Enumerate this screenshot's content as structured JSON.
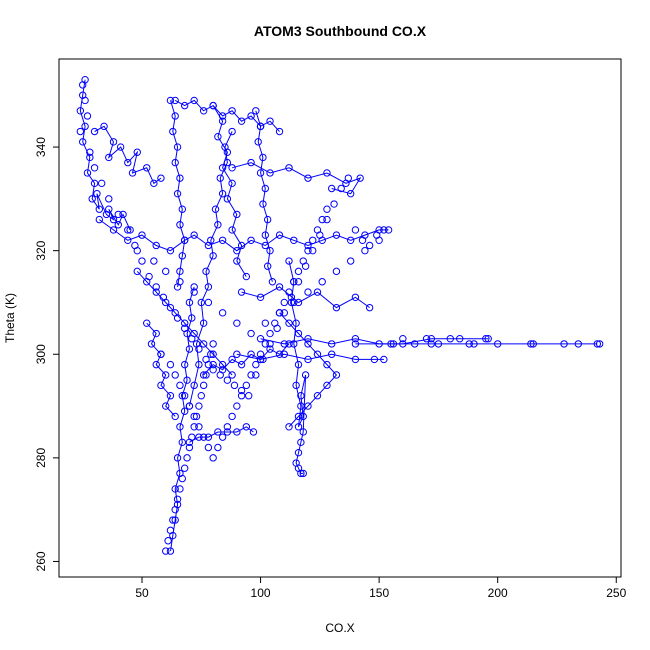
{
  "chart_data": {
    "type": "scatter",
    "title": "ATOM3 Southbound CO.X",
    "xlabel": "CO.X",
    "ylabel": "Theta (K)",
    "xlim": [
      15,
      252
    ],
    "ylim": [
      257,
      357
    ],
    "xticks": [
      50,
      100,
      150,
      200,
      250
    ],
    "yticks": [
      260,
      280,
      300,
      320,
      340
    ],
    "grid": false,
    "legend": "none",
    "series": [
      {
        "color": "#0000ff",
        "marker": "open-circle",
        "connected": true,
        "segments": [
          {
            "x": [
              26,
              25,
              24,
              26,
              25,
              28,
              27,
              30,
              29,
              32,
              31,
              35,
              38,
              36,
              40,
              42,
              45
            ],
            "y": [
              353,
              350,
              347,
              344,
              341,
              338,
              335,
              333,
              330,
              328,
              331,
              327,
              326,
              328,
              325,
              327,
              324
            ]
          },
          {
            "x": [
              30,
              34,
              38,
              36,
              41,
              44,
              48,
              46,
              52,
              55,
              58
            ],
            "y": [
              343,
              344,
              341,
              338,
              340,
              337,
              339,
              335,
              336,
              333,
              334
            ]
          },
          {
            "x": [
              32,
              38,
              44,
              50,
              56,
              62,
              68,
              72,
              78,
              84,
              90,
              96,
              102,
              108,
              114,
              120,
              126,
              132,
              138,
              144,
              150,
              154
            ],
            "y": [
              326,
              324,
              322,
              323,
              321,
              320,
              322,
              323,
              321,
              322,
              320,
              322,
              321,
              323,
              322,
              321,
              322,
              323,
              322,
              323,
              324,
              324
            ]
          },
          {
            "x": [
              62,
              63,
              64,
              65,
              64,
              66,
              65,
              67,
              66,
              68,
              67,
              69,
              68,
              70,
              69,
              71,
              70,
              72
            ],
            "y": [
              262,
              265,
              268,
              271,
              274,
              277,
              280,
              283,
              286,
              289,
              292,
              295,
              298,
              301,
              304,
              307,
              310,
              313
            ]
          },
          {
            "x": [
              70,
              72,
              74,
              73,
              76,
              75,
              78,
              77,
              80,
              79,
              82,
              81,
              84,
              83,
              86,
              85,
              88
            ],
            "y": [
              290,
              294,
              298,
              302,
              306,
              310,
              313,
              316,
              319,
              322,
              325,
              328,
              331,
              334,
              337,
              340,
              343
            ]
          },
          {
            "x": [
              62,
              64,
              63,
              65,
              64,
              66,
              65,
              67,
              66,
              68,
              67,
              66,
              65
            ],
            "y": [
              349,
              346,
              343,
              340,
              337,
              334,
              331,
              328,
              325,
              322,
              319,
              316,
              313
            ]
          },
          {
            "x": [
              64,
              68,
              72,
              76,
              80,
              84,
              88,
              92,
              96,
              100,
              104,
              108
            ],
            "y": [
              349,
              348,
              349,
              347,
              348,
              346,
              347,
              345,
              346,
              344,
              345,
              343
            ]
          },
          {
            "x": [
              80,
              84,
              82,
              86,
              84,
              88,
              86,
              90,
              88,
              92,
              90,
              94
            ],
            "y": [
              348,
              345,
              342,
              339,
              336,
              333,
              330,
              327,
              324,
              321,
              318,
              315
            ]
          },
          {
            "x": [
              98,
              100,
              99,
              101,
              100,
              102,
              101,
              103,
              102,
              104,
              103,
              105
            ],
            "y": [
              347,
              344,
              341,
              338,
              335,
              332,
              329,
              326,
              323,
              320,
              317,
              314
            ]
          },
          {
            "x": [
              112,
              114,
              113,
              115,
              114,
              116,
              115,
              117,
              116,
              118,
              117,
              119,
              118,
              117,
              116,
              115,
              116,
              117,
              118
            ],
            "y": [
              318,
              314,
              310,
              306,
              302,
              298,
              294,
              290,
              286,
              288,
              292,
              296,
              285,
              283,
              281,
              279,
              278,
              277,
              277
            ]
          },
          {
            "x": [
              88,
              96,
              104,
              112,
              120,
              128,
              136,
              142,
              138,
              130
            ],
            "y": [
              336,
              337,
              335,
              336,
              334,
              335,
              333,
              334,
              331,
              332
            ]
          },
          {
            "x": [
              92,
              100,
              108,
              116,
              124,
              132,
              140,
              146
            ],
            "y": [
              312,
              311,
              313,
              310,
              312,
              309,
              311,
              309
            ]
          },
          {
            "x": [
              100,
              110,
              120,
              130,
              140,
              150,
              160,
              172,
              184,
              196
            ],
            "y": [
              303,
              302,
              303,
              302,
              303,
              302,
              302,
              303,
              303,
              303
            ]
          },
          {
            "x": [
              140,
              156,
              172,
              188,
              200,
              214,
              228,
              242
            ],
            "y": [
              302,
              302,
              302,
              302,
              302,
              302,
              302,
              302
            ]
          },
          {
            "x": [
              90,
              100,
              110,
              120,
              130,
              140,
              148,
              152
            ],
            "y": [
              300,
              299,
              300,
              299,
              300,
              299,
              299,
              299
            ]
          },
          {
            "x": [
              70,
              74,
              78,
              82,
              86,
              90,
              94,
              97
            ],
            "y": [
              283,
              284,
              284,
              285,
              285,
              285,
              286,
              285
            ]
          },
          {
            "x": [
              48,
              52,
              56,
              60,
              64,
              68,
              72,
              76,
              80,
              84,
              88
            ],
            "y": [
              316,
              314,
              312,
              310,
              308,
              306,
              304,
              302,
              300,
              298,
              296
            ]
          },
          {
            "x": [
              52,
              56,
              54,
              58,
              56,
              60,
              58,
              62,
              60,
              64
            ],
            "y": [
              306,
              304,
              302,
              300,
              298,
              296,
              294,
              292,
              290,
              288
            ]
          },
          {
            "x": [
              76,
              80,
              84,
              88,
              92,
              96,
              100,
              104,
              108,
              112
            ],
            "y": [
              296,
              298,
              297,
              299,
              298,
              300,
              299,
              301,
              300,
              302
            ]
          },
          {
            "x": [
              108,
              112,
              116,
              120,
              124,
              128,
              132,
              128,
              124,
              120,
              116,
              112
            ],
            "y": [
              308,
              306,
              304,
              302,
              300,
              298,
              296,
              294,
              292,
              290,
              288,
              286
            ]
          }
        ],
        "points": {
          "x": [
            25,
            26,
            27,
            24,
            28,
            30,
            33,
            36,
            40,
            44,
            47,
            50,
            53,
            56,
            59,
            62,
            65,
            68,
            71,
            74,
            77,
            80,
            83,
            86,
            89,
            92,
            95,
            98,
            101,
            104,
            107,
            110,
            113,
            116,
            119,
            122,
            125,
            128,
            131,
            134,
            137,
            140,
            143,
            146,
            149,
            152,
            155,
            160,
            165,
            170,
            175,
            180,
            190,
            195,
            215,
            234,
            243,
            48,
            55,
            60,
            66,
            72,
            78,
            84,
            90,
            96,
            102,
            108,
            114,
            120,
            126,
            132,
            138,
            144,
            150,
            58,
            62,
            64,
            66,
            68,
            70,
            72,
            74,
            76,
            78,
            80,
            82,
            84,
            86,
            88,
            90,
            92,
            94,
            96,
            98,
            100,
            102,
            104,
            106,
            108,
            110,
            112,
            114,
            116,
            118,
            120,
            122,
            124,
            126,
            128,
            60,
            61,
            62,
            63,
            64,
            65,
            66,
            67,
            68,
            69,
            70,
            71,
            72,
            73,
            74,
            75,
            76,
            77,
            78,
            79,
            80
          ],
          "y": [
            352,
            349,
            346,
            343,
            339,
            336,
            333,
            330,
            327,
            324,
            321,
            318,
            315,
            313,
            311,
            309,
            307,
            305,
            303,
            301,
            299,
            297,
            296,
            295,
            294,
            293,
            292,
            296,
            299,
            302,
            305,
            308,
            311,
            314,
            317,
            320,
            323,
            326,
            329,
            332,
            334,
            324,
            322,
            321,
            323,
            324,
            302,
            303,
            302,
            303,
            302,
            303,
            302,
            303,
            302,
            302,
            302,
            320,
            318,
            316,
            314,
            312,
            310,
            308,
            306,
            304,
            306,
            308,
            310,
            312,
            314,
            316,
            318,
            320,
            322,
            300,
            298,
            296,
            294,
            292,
            290,
            288,
            286,
            284,
            282,
            280,
            282,
            284,
            286,
            288,
            290,
            292,
            294,
            296,
            298,
            300,
            302,
            304,
            306,
            308,
            310,
            312,
            314,
            316,
            318,
            320,
            322,
            324,
            326,
            328,
            262,
            264,
            266,
            268,
            270,
            272,
            274,
            276,
            278,
            280,
            282,
            284,
            286,
            288,
            290,
            292,
            294,
            296,
            298,
            300,
            302
          ]
        }
      }
    ]
  }
}
